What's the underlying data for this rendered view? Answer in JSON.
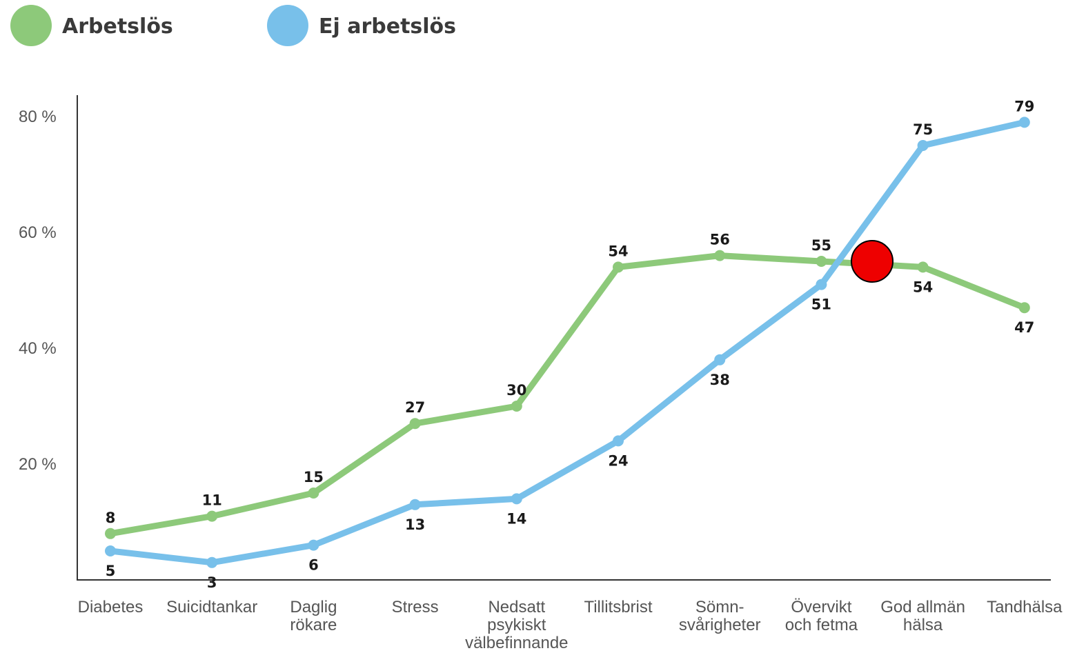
{
  "chart_data": {
    "type": "line",
    "categories": [
      [
        "Diabetes"
      ],
      [
        "Suicidtankar"
      ],
      [
        "Daglig",
        "rökare"
      ],
      [
        "Stress"
      ],
      [
        "Nedsatt",
        "psykiskt",
        "välbefinnande"
      ],
      [
        "Tillitsbrist"
      ],
      [
        "Sömn-",
        "svårigheter"
      ],
      [
        "Övervikt",
        "och fetma"
      ],
      [
        "God allmän",
        "hälsa"
      ],
      [
        "Tandhälsa"
      ]
    ],
    "series": [
      {
        "name": "Arbetslös",
        "color": "#8dc97a",
        "values": [
          8,
          11,
          15,
          27,
          30,
          54,
          56,
          55,
          54,
          47
        ]
      },
      {
        "name": "Ej arbetslös",
        "color": "#78c0ea",
        "values": [
          5,
          3,
          6,
          13,
          14,
          24,
          38,
          51,
          75,
          79
        ]
      }
    ],
    "y_ticks": [
      {
        "value": 20,
        "label": "20 %"
      },
      {
        "value": 40,
        "label": "40 %"
      },
      {
        "value": 60,
        "label": "60 %"
      },
      {
        "value": 80,
        "label": "80 %"
      }
    ],
    "ylim": [
      0,
      80
    ],
    "legend_position": "top-left",
    "grid": false,
    "marker": {
      "type": "red-circle",
      "color": "#ee0000",
      "category_position": 7.5,
      "value": 55
    }
  }
}
